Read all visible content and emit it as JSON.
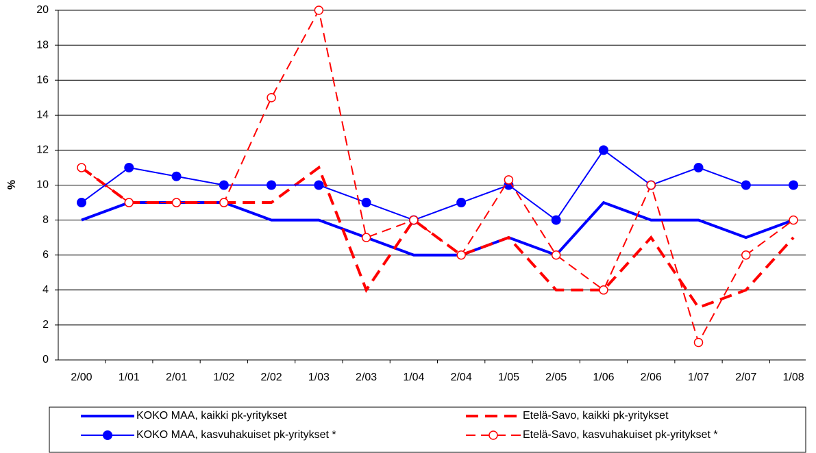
{
  "chart_data": {
    "type": "line",
    "ylabel": "%",
    "categories": [
      "2/00",
      "1/01",
      "2/01",
      "1/02",
      "2/02",
      "1/03",
      "2/03",
      "1/04",
      "2/04",
      "1/05",
      "2/05",
      "1/06",
      "2/06",
      "1/07",
      "2/07",
      "1/08"
    ],
    "series": [
      {
        "name": "KOKO MAA, kaikki pk-yritykset",
        "color": "#0000ff",
        "line_style": "solid",
        "marker": "none",
        "values": [
          8,
          9,
          9,
          9,
          8,
          8,
          7,
          6,
          6,
          7,
          6,
          9,
          8,
          8,
          7,
          8
        ]
      },
      {
        "name": "Etelä-Savo, kaikki pk-yritykset",
        "color": "#ff0000",
        "line_style": "dashed",
        "marker": "none",
        "values": [
          11,
          9,
          9,
          9,
          9,
          11,
          4,
          8,
          6,
          7,
          4,
          4,
          7,
          3,
          4,
          7
        ]
      },
      {
        "name": "KOKO MAA, kasvuhakuiset pk-yritykset *",
        "color": "#0000ff",
        "line_style": "solid",
        "marker": "circle-filled",
        "values": [
          9,
          11,
          10.5,
          10,
          10,
          10,
          9,
          8,
          9,
          10,
          8,
          12,
          10,
          11,
          10,
          10
        ]
      },
      {
        "name": "Etelä-Savo, kasvuhakuiset pk-yritykset *",
        "color": "#ff0000",
        "line_style": "dashed",
        "marker": "circle-open",
        "values": [
          11,
          9,
          9,
          9,
          15,
          20,
          7,
          8,
          6,
          10.3,
          6,
          4,
          10,
          1,
          6,
          8
        ]
      }
    ],
    "ylim": [
      0,
      20
    ],
    "yticks": [
      0,
      2,
      4,
      6,
      8,
      10,
      12,
      14,
      16,
      18,
      20
    ],
    "grid": true
  }
}
